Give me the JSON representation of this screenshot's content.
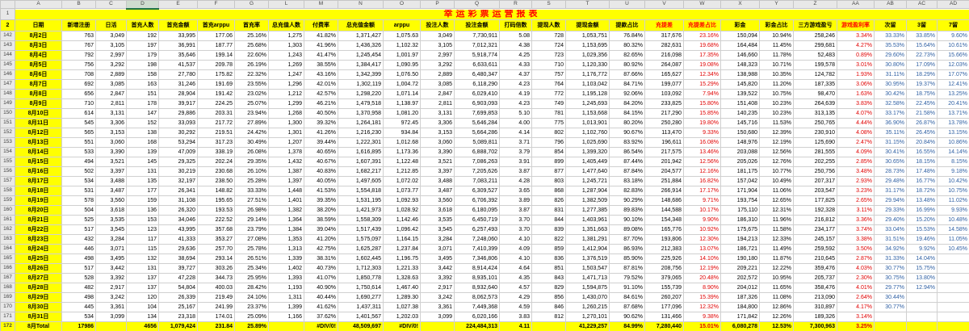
{
  "sheet": {
    "title": "幸运彩票运营报表",
    "selected_column": "D",
    "column_letters": [
      "",
      "A",
      "B",
      "C",
      "D",
      "E",
      "F",
      "G",
      "L",
      "M",
      "N",
      "O",
      "P",
      "Q",
      "R",
      "S",
      "T",
      "U",
      "V",
      "W",
      "X",
      "Y",
      "Z",
      "AA",
      "AB",
      "AC",
      "AD"
    ],
    "frozen_row_numbers": [
      "1",
      "2"
    ],
    "headers": [
      "日期",
      "新增注册",
      "日活",
      "首充人数",
      "首充金额",
      "首充arppu",
      "首充率",
      "总充值人数",
      "付费率",
      "总充值金额",
      "arppu",
      "投注人数",
      "投注金额",
      "打码倍数",
      "提现人数",
      "提现金额",
      "提款占比",
      "充提差",
      "充提差占比",
      "彩金",
      "彩金占比",
      "三方游戏盈亏",
      "游戏盈利率",
      "次留",
      "3留",
      "7留"
    ],
    "red_header_indices": [
      17,
      18,
      22
    ],
    "red_value_columns": [
      18,
      22
    ],
    "blue_value_columns": [
      23,
      24,
      25
    ],
    "colors": {
      "accent_yellow": "#ffff00",
      "title_red": "#ff0000",
      "value_red": "#e00000",
      "retention_blue": "#2e5fa3",
      "grid_line": "#d0d0d0",
      "header_strip": "#e8e8e8",
      "selected_green": "#217346"
    },
    "rows": [
      {
        "n": "142",
        "total": false,
        "cells": [
          "8月2日",
          "763",
          "3,049",
          "192",
          "33,995",
          "177.06",
          "25.16%",
          "1,275",
          "41.82%",
          "1,371,427",
          "1,075.63",
          "3,049",
          "7,730,911",
          "5.08",
          "728",
          "1,053,751",
          "76.84%",
          "317,676",
          "23.16%",
          "150,094",
          "10.94%",
          "258,246",
          "3.34%",
          "33.33%",
          "33.85%",
          "9.60%"
        ]
      },
      {
        "n": "143",
        "total": false,
        "cells": [
          "8月3日",
          "767",
          "3,105",
          "197",
          "36,991",
          "187.77",
          "25.68%",
          "1,303",
          "41.96%",
          "1,436,326",
          "1,102.32",
          "3,105",
          "7,012,321",
          "4.38",
          "724",
          "1,153,695",
          "80.32%",
          "282,631",
          "19.68%",
          "164,484",
          "11.45%",
          "299,681",
          "4.27%",
          "35.53%",
          "15.64%",
          "10.61%"
        ]
      },
      {
        "n": "144",
        "total": false,
        "cells": [
          "8月4日",
          "792",
          "2,997",
          "179",
          "35,646",
          "199.14",
          "22.60%",
          "1,243",
          "41.47%",
          "1,245,454",
          "1,001.97",
          "2,997",
          "5,918,774",
          "4.25",
          "723",
          "1,029,356",
          "82.65%",
          "216,098",
          "17.35%",
          "146,660",
          "11.78%",
          "52,483",
          "0.89%",
          "29.60%",
          "22.73%",
          "15.66%"
        ]
      },
      {
        "n": "145",
        "total": false,
        "cells": [
          "8月5日",
          "756",
          "3,292",
          "198",
          "41,537",
          "209.78",
          "26.19%",
          "1,269",
          "38.55%",
          "1,384,417",
          "1,090.95",
          "3,292",
          "6,633,611",
          "4.33",
          "710",
          "1,120,330",
          "80.92%",
          "264,087",
          "19.08%",
          "148,323",
          "10.71%",
          "199,578",
          "3.01%",
          "30.80%",
          "17.09%",
          "12.03%"
        ]
      },
      {
        "n": "146",
        "total": false,
        "cells": [
          "8月6日",
          "708",
          "2,889",
          "158",
          "27,780",
          "175.82",
          "22.32%",
          "1,247",
          "43.16%",
          "1,342,399",
          "1,076.50",
          "2,889",
          "6,480,347",
          "4.37",
          "757",
          "1,176,772",
          "87.66%",
          "165,627",
          "12.34%",
          "138,988",
          "10.35%",
          "124,782",
          "1.93%",
          "31.11%",
          "18.29%",
          "17.07%"
        ]
      },
      {
        "n": "147",
        "total": false,
        "cells": [
          "8月7日",
          "692",
          "3,085",
          "163",
          "31,246",
          "191.69",
          "23.55%",
          "1,296",
          "42.01%",
          "1,302,119",
          "1,004.72",
          "3,085",
          "6,118,290",
          "4.23",
          "764",
          "1,103,042",
          "84.71%",
          "199,077",
          "15.29%",
          "145,820",
          "11.20%",
          "187,335",
          "3.06%",
          "30.95%",
          "19.37%",
          "12.41%"
        ]
      },
      {
        "n": "148",
        "total": false,
        "cells": [
          "8月8日",
          "656",
          "2,847",
          "151",
          "28,904",
          "191.42",
          "23.02%",
          "1,212",
          "42.57%",
          "1,298,220",
          "1,071.14",
          "2,847",
          "6,029,410",
          "4.19",
          "772",
          "1,195,128",
          "92.06%",
          "103,092",
          "7.94%",
          "139,522",
          "10.75%",
          "98,470",
          "1.63%",
          "30.42%",
          "18.75%",
          "13.25%"
        ]
      },
      {
        "n": "149",
        "total": false,
        "cells": [
          "8月9日",
          "710",
          "2,811",
          "178",
          "39,917",
          "224.25",
          "25.07%",
          "1,299",
          "46.21%",
          "1,479,518",
          "1,138.97",
          "2,811",
          "6,903,093",
          "4.23",
          "749",
          "1,245,693",
          "84.20%",
          "233,825",
          "15.80%",
          "151,408",
          "10.23%",
          "264,639",
          "3.83%",
          "32.58%",
          "22.45%",
          "20.41%"
        ]
      },
      {
        "n": "150",
        "total": false,
        "cells": [
          "8月10日",
          "614",
          "3,131",
          "147",
          "29,886",
          "203.31",
          "23.94%",
          "1,268",
          "40.50%",
          "1,370,958",
          "1,081.20",
          "3,131",
          "7,699,853",
          "5.10",
          "781",
          "1,153,668",
          "84.15%",
          "217,290",
          "15.85%",
          "140,235",
          "10.23%",
          "313,135",
          "4.07%",
          "33.17%",
          "21.58%",
          "13.71%"
        ]
      },
      {
        "n": "151",
        "total": false,
        "cells": [
          "8月11日",
          "545",
          "3,306",
          "152",
          "33,093",
          "217.72",
          "27.89%",
          "1,300",
          "39.32%",
          "1,264,181",
          "972.45",
          "3,306",
          "5,646,284",
          "4.00",
          "775",
          "1,013,901",
          "80.20%",
          "250,280",
          "19.80%",
          "145,716",
          "11.53%",
          "250,765",
          "4.44%",
          "36.90%",
          "26.87%",
          "13.78%"
        ]
      },
      {
        "n": "152",
        "total": false,
        "cells": [
          "8月12日",
          "565",
          "3,153",
          "138",
          "30,292",
          "219.51",
          "24.42%",
          "1,301",
          "41.26%",
          "1,216,230",
          "934.84",
          "3,153",
          "5,664,286",
          "4.14",
          "802",
          "1,102,760",
          "90.67%",
          "113,470",
          "9.33%",
          "150,680",
          "12.39%",
          "230,910",
          "4.08%",
          "35.11%",
          "26.45%",
          "13.15%"
        ]
      },
      {
        "n": "153",
        "total": false,
        "cells": [
          "8月13日",
          "551",
          "3,060",
          "168",
          "53,294",
          "317.23",
          "30.49%",
          "1,207",
          "39.44%",
          "1,222,301",
          "1,012.68",
          "3,060",
          "5,089,811",
          "3.71",
          "796",
          "1,025,690",
          "83.92%",
          "196,611",
          "16.08%",
          "148,976",
          "12.19%",
          "125,690",
          "2.47%",
          "31.15%",
          "20.84%",
          "10.86%"
        ]
      },
      {
        "n": "154",
        "total": false,
        "cells": [
          "8月14日",
          "533",
          "3,390",
          "139",
          "47,009",
          "338.19",
          "26.08%",
          "1,378",
          "40.65%",
          "1,616,895",
          "1,173.36",
          "3,390",
          "6,888,702",
          "3.79",
          "854",
          "1,399,320",
          "86.54%",
          "217,575",
          "13.46%",
          "203,088",
          "12.56%",
          "281,555",
          "4.09%",
          "30.41%",
          "16.55%",
          "14.14%"
        ]
      },
      {
        "n": "155",
        "total": false,
        "cells": [
          "8月15日",
          "494",
          "3,521",
          "145",
          "29,325",
          "202.24",
          "29.35%",
          "1,432",
          "40.67%",
          "1,607,391",
          "1,122.48",
          "3,521",
          "7,086,263",
          "3.91",
          "899",
          "1,405,449",
          "87.44%",
          "201,942",
          "12.56%",
          "205,026",
          "12.76%",
          "202,255",
          "2.85%",
          "30.65%",
          "18.15%",
          "8.15%"
        ]
      },
      {
        "n": "156",
        "total": false,
        "cells": [
          "8月16日",
          "502",
          "3,397",
          "131",
          "30,219",
          "230.68",
          "26.10%",
          "1,387",
          "40.83%",
          "1,682,217",
          "1,212.85",
          "3,397",
          "7,205,626",
          "3.87",
          "877",
          "1,477,640",
          "87.84%",
          "204,577",
          "12.16%",
          "181,175",
          "10.77%",
          "250,756",
          "3.48%",
          "28.73%",
          "17.48%",
          "9.18%"
        ]
      },
      {
        "n": "157",
        "total": false,
        "cells": [
          "8月17日",
          "534",
          "3,488",
          "135",
          "32,197",
          "238.50",
          "25.28%",
          "1,397",
          "40.05%",
          "1,497,605",
          "1,072.02",
          "3,488",
          "7,083,211",
          "4.28",
          "803",
          "1,245,721",
          "83.18%",
          "251,884",
          "16.82%",
          "157,042",
          "10.49%",
          "207,317",
          "2.93%",
          "29.48%",
          "16.77%",
          "10.42%"
        ]
      },
      {
        "n": "158",
        "total": false,
        "cells": [
          "8月18日",
          "531",
          "3,487",
          "177",
          "26,341",
          "148.82",
          "33.33%",
          "1,448",
          "41.53%",
          "1,554,818",
          "1,073.77",
          "3,487",
          "6,309,527",
          "3.65",
          "868",
          "1,287,904",
          "82.83%",
          "266,914",
          "17.17%",
          "171,904",
          "11.06%",
          "203,547",
          "3.23%",
          "31.17%",
          "18.72%",
          "10.75%"
        ]
      },
      {
        "n": "159",
        "total": false,
        "cells": [
          "8月19日",
          "578",
          "3,560",
          "159",
          "31,108",
          "195.65",
          "27.51%",
          "1,401",
          "39.35%",
          "1,531,195",
          "1,092.93",
          "3,560",
          "6,706,392",
          "3.89",
          "826",
          "1,382,509",
          "90.29%",
          "148,686",
          "9.71%",
          "193,754",
          "12.65%",
          "177,825",
          "2.65%",
          "29.94%",
          "13.48%",
          "11.02%"
        ]
      },
      {
        "n": "160",
        "total": false,
        "cells": [
          "8月20日",
          "504",
          "3,618",
          "136",
          "26,320",
          "193.53",
          "26.98%",
          "1,382",
          "38.20%",
          "1,421,973",
          "1,028.92",
          "3,618",
          "6,180,095",
          "3.87",
          "831",
          "1,277,385",
          "89.83%",
          "144,588",
          "10.17%",
          "175,110",
          "12.31%",
          "192,328",
          "3.11%",
          "29.33%",
          "16.99%",
          "9.93%"
        ]
      },
      {
        "n": "161",
        "total": false,
        "cells": [
          "8月21日",
          "525",
          "3,535",
          "153",
          "34,046",
          "222.52",
          "29.14%",
          "1,364",
          "38.59%",
          "1,558,309",
          "1,142.46",
          "3,535",
          "6,450,719",
          "3.70",
          "844",
          "1,403,961",
          "90.10%",
          "154,348",
          "9.90%",
          "186,310",
          "11.96%",
          "216,812",
          "3.36%",
          "29.40%",
          "15.20%",
          "10.48%"
        ]
      },
      {
        "n": "162",
        "total": false,
        "cells": [
          "8月22日",
          "517",
          "3,545",
          "123",
          "43,995",
          "357.68",
          "23.79%",
          "1,384",
          "39.04%",
          "1,517,439",
          "1,096.42",
          "3,545",
          "6,257,493",
          "3.70",
          "839",
          "1,351,663",
          "89.08%",
          "165,776",
          "10.92%",
          "175,675",
          "11.58%",
          "234,177",
          "3.74%",
          "33.04%",
          "15.53%",
          "14.58%"
        ]
      },
      {
        "n": "163",
        "total": false,
        "cells": [
          "8月23日",
          "432",
          "3,284",
          "117",
          "41,333",
          "353.27",
          "27.08%",
          "1,353",
          "41.20%",
          "1,575,097",
          "1,164.15",
          "3,284",
          "7,248,060",
          "4.10",
          "822",
          "1,381,291",
          "87.70%",
          "193,806",
          "12.30%",
          "194,213",
          "12.33%",
          "245,157",
          "3.38%",
          "31.51%",
          "19.46%",
          "11.05%"
        ]
      },
      {
        "n": "164",
        "total": false,
        "cells": [
          "8月24日",
          "446",
          "3,071",
          "115",
          "29,636",
          "257.70",
          "25.78%",
          "1,313",
          "42.75%",
          "1,625,287",
          "1,237.84",
          "3,071",
          "7,410,399",
          "4.09",
          "859",
          "1,412,904",
          "86.93%",
          "212,383",
          "13.07%",
          "186,721",
          "11.49%",
          "259,592",
          "3.50%",
          "34.92%",
          "9.92%",
          "10.45%"
        ]
      },
      {
        "n": "165",
        "total": false,
        "cells": [
          "8月25日",
          "498",
          "3,495",
          "132",
          "38,694",
          "293.14",
          "26.51%",
          "1,339",
          "38.31%",
          "1,602,445",
          "1,196.75",
          "3,495",
          "7,346,806",
          "4.10",
          "836",
          "1,376,519",
          "85.90%",
          "225,926",
          "14.10%",
          "190,180",
          "11.87%",
          "210,645",
          "2.87%",
          "31.33%",
          "14.04%",
          ""
        ]
      },
      {
        "n": "166",
        "total": false,
        "cells": [
          "8月26日",
          "517",
          "3,442",
          "131",
          "39,727",
          "303.26",
          "25.34%",
          "1,402",
          "40.73%",
          "1,712,303",
          "1,221.33",
          "3,442",
          "8,914,424",
          "4.64",
          "851",
          "1,503,547",
          "87.81%",
          "208,756",
          "12.19%",
          "209,221",
          "12.22%",
          "359,476",
          "4.03%",
          "30.77%",
          "15.75%",
          ""
        ]
      },
      {
        "n": "167",
        "total": false,
        "cells": [
          "8月27日",
          "528",
          "3,392",
          "137",
          "47,228",
          "344.73",
          "25.95%",
          "1,393",
          "41.07%",
          "1,850,778",
          "1,328.63",
          "3,392",
          "8,935,101",
          "4.35",
          "843",
          "1,471,713",
          "79.52%",
          "379,065",
          "20.48%",
          "202,572",
          "10.95%",
          "205,737",
          "2.30%",
          "30.75%",
          "13.80%",
          ""
        ]
      },
      {
        "n": "168",
        "total": false,
        "cells": [
          "8月28日",
          "482",
          "2,917",
          "137",
          "54,804",
          "400.03",
          "28.42%",
          "1,193",
          "40.90%",
          "1,750,614",
          "1,467.40",
          "2,917",
          "8,932,640",
          "4.57",
          "829",
          "1,594,875",
          "91.10%",
          "155,739",
          "8.90%",
          "204,012",
          "11.65%",
          "358,476",
          "4.01%",
          "29.77%",
          "12.94%",
          ""
        ]
      },
      {
        "n": "169",
        "total": false,
        "cells": [
          "8月29日",
          "498",
          "3,242",
          "120",
          "26,339",
          "219.49",
          "24.10%",
          "1,311",
          "40.44%",
          "1,690,277",
          "1,289.30",
          "3,242",
          "8,062,573",
          "4.29",
          "856",
          "1,430,070",
          "84.61%",
          "260,207",
          "15.39%",
          "187,326",
          "11.08%",
          "213,090",
          "2.64%",
          "30.44%",
          "",
          ""
        ]
      },
      {
        "n": "170",
        "total": false,
        "cells": [
          "8月30日",
          "445",
          "3,361",
          "104",
          "25,167",
          "241.99",
          "23.37%",
          "1,399",
          "41.62%",
          "1,437,311",
          "1,027.38",
          "3,361",
          "7,449,368",
          "4.59",
          "846",
          "1,260,215",
          "87.68%",
          "177,096",
          "12.32%",
          "184,800",
          "12.86%",
          "310,897",
          "4.17%",
          "30.77%",
          "",
          ""
        ]
      },
      {
        "n": "171",
        "total": false,
        "cells": [
          "8月31日",
          "534",
          "3,099",
          "134",
          "23,318",
          "174.01",
          "25.09%",
          "1,166",
          "37.62%",
          "1,401,567",
          "1,202.03",
          "3,099",
          "6,020,166",
          "3.83",
          "812",
          "1,270,101",
          "90.62%",
          "131,466",
          "9.38%",
          "171,842",
          "12.26%",
          "189,326",
          "3.14%",
          "",
          "",
          ""
        ]
      },
      {
        "n": "172",
        "total": true,
        "cells": [
          "8月Total",
          "17986",
          "",
          "4656",
          "1,079,424",
          "231.84",
          "25.89%",
          "",
          "#DIV/0!",
          "48,509,697",
          "#DIV/0!",
          "",
          "224,484,313",
          "4.11",
          "",
          "41,229,257",
          "84.99%",
          "7,280,440",
          "15.01%",
          "6,080,278",
          "12.53%",
          "7,300,963",
          "3.25%",
          "",
          "",
          ""
        ]
      }
    ]
  }
}
